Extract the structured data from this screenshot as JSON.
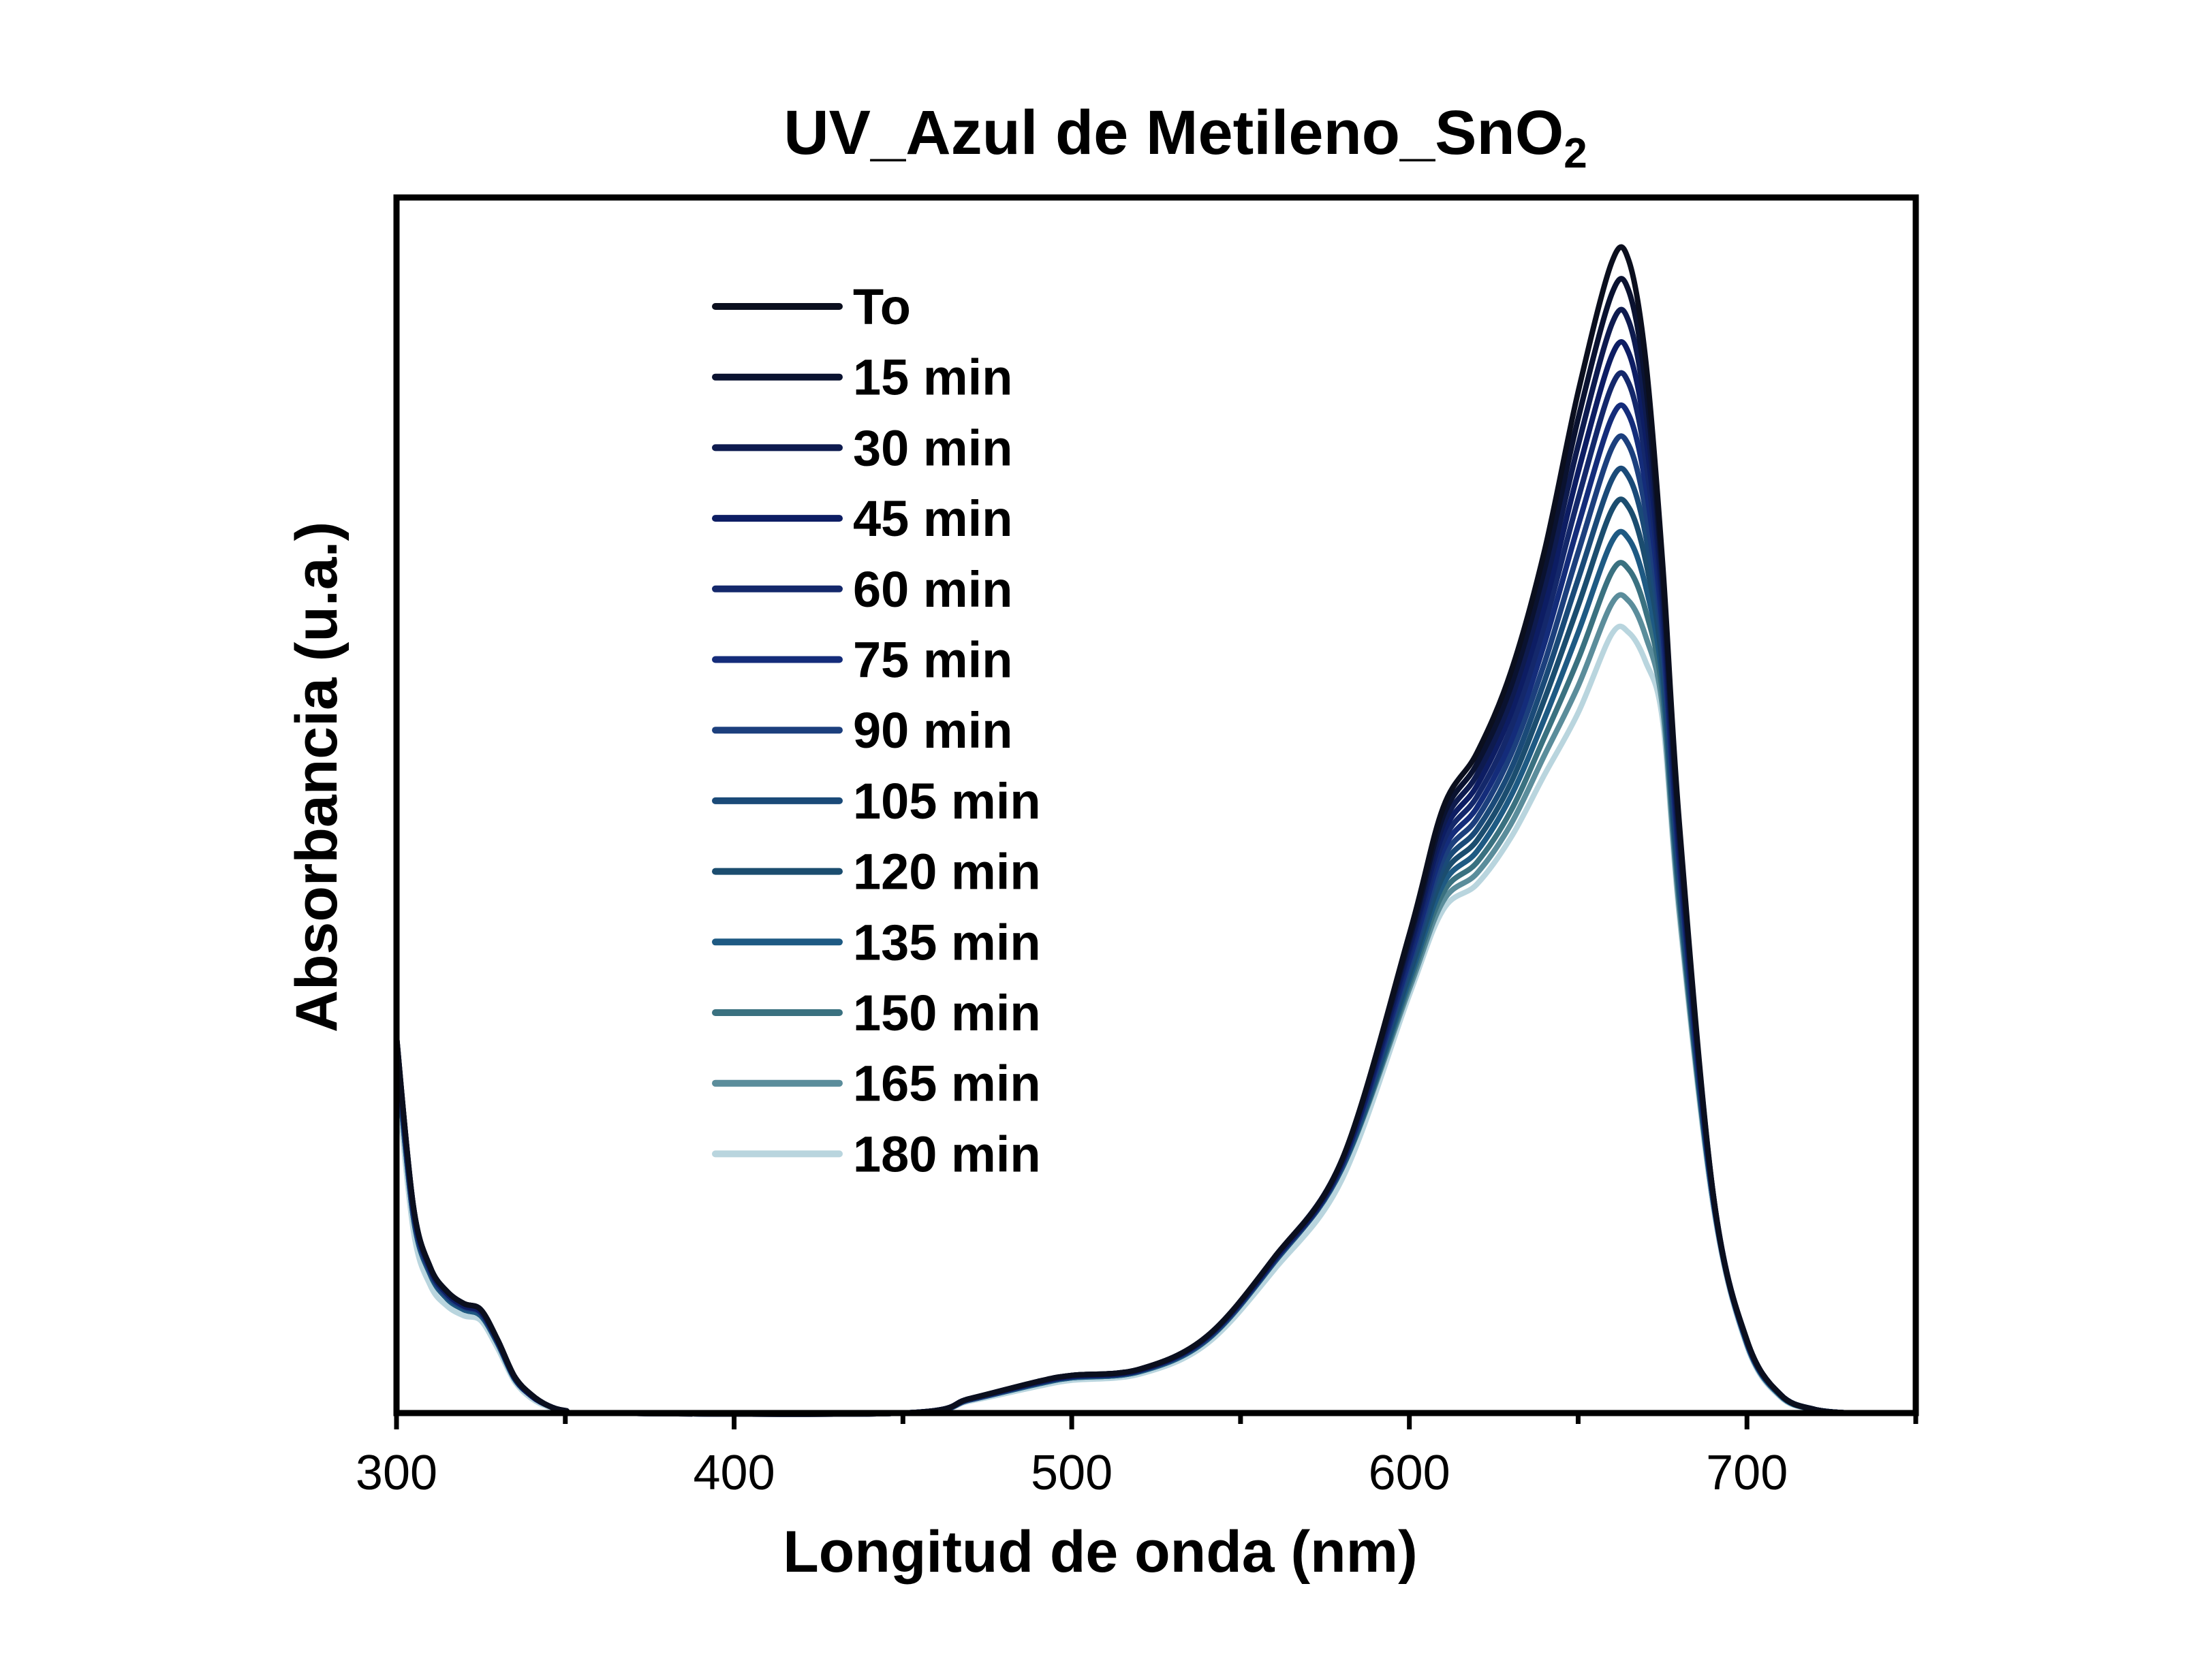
{
  "chart_data": {
    "type": "line",
    "title": "UV_Azul de Metileno_SnO",
    "title_subscript": "2",
    "xlabel": "Longitud de onda (nm)",
    "ylabel": "Absorbancia (u.a.)",
    "xlim": [
      300,
      750
    ],
    "ylim": [
      0,
      1.0
    ],
    "x_ticks": [
      300,
      400,
      500,
      600,
      700
    ],
    "x_ticks_labels": [
      "300",
      "400",
      "500",
      "600",
      "700"
    ],
    "y_tick_labels_shown": false,
    "legend_position": "top-left",
    "grid": false,
    "x": [
      300,
      305,
      310,
      315,
      320,
      325,
      330,
      335,
      340,
      345,
      350,
      360,
      450,
      470,
      490,
      500,
      520,
      540,
      560,
      580,
      600,
      610,
      620,
      630,
      640,
      650,
      660,
      665,
      670,
      675,
      680,
      690,
      700,
      710,
      720,
      730
    ],
    "series": [
      {
        "name": "To",
        "color": "#0b0f1e",
        "values": [
          0.31,
          0.17,
          0.12,
          0.1,
          0.09,
          0.085,
          0.06,
          0.03,
          0.015,
          0.006,
          0.002,
          0.0,
          0.0,
          0.012,
          0.026,
          0.031,
          0.036,
          0.063,
          0.128,
          0.208,
          0.394,
          0.498,
          0.543,
          0.609,
          0.709,
          0.84,
          0.947,
          0.948,
          0.866,
          0.7,
          0.484,
          0.18,
          0.06,
          0.015,
          0.003,
          0.0
        ]
      },
      {
        "name": "15 min",
        "color": "#0a1230",
        "values": [
          0.31,
          0.17,
          0.12,
          0.1,
          0.09,
          0.085,
          0.06,
          0.03,
          0.015,
          0.006,
          0.002,
          0.0,
          0.0,
          0.012,
          0.026,
          0.031,
          0.036,
          0.063,
          0.128,
          0.208,
          0.39,
          0.491,
          0.534,
          0.597,
          0.694,
          0.818,
          0.921,
          0.923,
          0.846,
          0.689,
          0.478,
          0.18,
          0.06,
          0.015,
          0.003,
          0.0
        ]
      },
      {
        "name": "30 min",
        "color": "#0e1b4f",
        "values": [
          0.31,
          0.17,
          0.12,
          0.1,
          0.09,
          0.085,
          0.06,
          0.03,
          0.015,
          0.006,
          0.002,
          0.0,
          0.0,
          0.012,
          0.026,
          0.031,
          0.036,
          0.063,
          0.128,
          0.208,
          0.386,
          0.484,
          0.525,
          0.586,
          0.679,
          0.796,
          0.896,
          0.898,
          0.825,
          0.678,
          0.471,
          0.18,
          0.06,
          0.015,
          0.003,
          0.0
        ]
      },
      {
        "name": "45 min",
        "color": "#0d1d63",
        "values": [
          0.305,
          0.167,
          0.118,
          0.098,
          0.088,
          0.083,
          0.059,
          0.029,
          0.014,
          0.006,
          0.002,
          0.0,
          0.0,
          0.012,
          0.025,
          0.03,
          0.035,
          0.062,
          0.126,
          0.205,
          0.382,
          0.477,
          0.516,
          0.575,
          0.663,
          0.774,
          0.87,
          0.872,
          0.804,
          0.668,
          0.465,
          0.178,
          0.059,
          0.015,
          0.003,
          0.0
        ]
      },
      {
        "name": "60 min",
        "color": "#14286b",
        "values": [
          0.305,
          0.167,
          0.118,
          0.098,
          0.088,
          0.083,
          0.059,
          0.029,
          0.014,
          0.006,
          0.002,
          0.0,
          0.0,
          0.012,
          0.025,
          0.03,
          0.035,
          0.062,
          0.126,
          0.205,
          0.378,
          0.47,
          0.507,
          0.563,
          0.648,
          0.752,
          0.845,
          0.847,
          0.784,
          0.657,
          0.459,
          0.178,
          0.059,
          0.015,
          0.003,
          0.0
        ]
      },
      {
        "name": "75 min",
        "color": "#142c7a",
        "values": [
          0.305,
          0.167,
          0.118,
          0.098,
          0.088,
          0.083,
          0.059,
          0.029,
          0.014,
          0.006,
          0.002,
          0.0,
          0.0,
          0.012,
          0.025,
          0.03,
          0.035,
          0.062,
          0.126,
          0.205,
          0.373,
          0.463,
          0.498,
          0.552,
          0.633,
          0.73,
          0.819,
          0.821,
          0.763,
          0.646,
          0.452,
          0.178,
          0.059,
          0.015,
          0.003,
          0.0
        ]
      },
      {
        "name": "90 min",
        "color": "#1c3f7d",
        "values": [
          0.3,
          0.164,
          0.116,
          0.096,
          0.087,
          0.082,
          0.058,
          0.029,
          0.014,
          0.006,
          0.002,
          0.0,
          0.0,
          0.011,
          0.025,
          0.03,
          0.035,
          0.061,
          0.125,
          0.203,
          0.369,
          0.456,
          0.489,
          0.541,
          0.617,
          0.708,
          0.794,
          0.796,
          0.742,
          0.635,
          0.446,
          0.176,
          0.058,
          0.015,
          0.003,
          0.0
        ]
      },
      {
        "name": "105 min",
        "color": "#1a4a78",
        "values": [
          0.3,
          0.164,
          0.116,
          0.096,
          0.087,
          0.082,
          0.058,
          0.029,
          0.014,
          0.006,
          0.002,
          0.0,
          0.0,
          0.011,
          0.025,
          0.03,
          0.035,
          0.061,
          0.125,
          0.203,
          0.365,
          0.449,
          0.48,
          0.529,
          0.602,
          0.686,
          0.768,
          0.77,
          0.722,
          0.624,
          0.44,
          0.176,
          0.058,
          0.015,
          0.003,
          0.0
        ]
      },
      {
        "name": "120 min",
        "color": "#1b4d6f",
        "values": [
          0.3,
          0.164,
          0.116,
          0.096,
          0.087,
          0.082,
          0.058,
          0.029,
          0.014,
          0.006,
          0.002,
          0.0,
          0.0,
          0.011,
          0.025,
          0.03,
          0.035,
          0.061,
          0.125,
          0.203,
          0.361,
          0.442,
          0.471,
          0.518,
          0.587,
          0.664,
          0.743,
          0.745,
          0.701,
          0.614,
          0.433,
          0.176,
          0.058,
          0.015,
          0.003,
          0.0
        ]
      },
      {
        "name": "135 min",
        "color": "#1e5a83",
        "values": [
          0.295,
          0.161,
          0.114,
          0.094,
          0.085,
          0.08,
          0.057,
          0.028,
          0.014,
          0.006,
          0.002,
          0.0,
          0.0,
          0.011,
          0.024,
          0.029,
          0.034,
          0.06,
          0.124,
          0.201,
          0.357,
          0.435,
          0.462,
          0.507,
          0.571,
          0.642,
          0.717,
          0.719,
          0.68,
          0.603,
          0.427,
          0.174,
          0.057,
          0.014,
          0.003,
          0.0
        ]
      },
      {
        "name": "150 min",
        "color": "#3a7180",
        "values": [
          0.295,
          0.161,
          0.114,
          0.094,
          0.085,
          0.08,
          0.057,
          0.028,
          0.014,
          0.006,
          0.002,
          0.0,
          0.0,
          0.011,
          0.024,
          0.029,
          0.034,
          0.06,
          0.124,
          0.201,
          0.353,
          0.428,
          0.453,
          0.495,
          0.556,
          0.62,
          0.692,
          0.694,
          0.66,
          0.592,
          0.421,
          0.174,
          0.057,
          0.014,
          0.003,
          0.0
        ]
      },
      {
        "name": "165 min",
        "color": "#5b8d9b",
        "values": [
          0.295,
          0.161,
          0.114,
          0.094,
          0.085,
          0.08,
          0.057,
          0.028,
          0.014,
          0.006,
          0.002,
          0.0,
          0.0,
          0.011,
          0.024,
          0.029,
          0.034,
          0.06,
          0.124,
          0.201,
          0.349,
          0.421,
          0.444,
          0.484,
          0.541,
          0.598,
          0.666,
          0.668,
          0.639,
          0.581,
          0.414,
          0.174,
          0.057,
          0.014,
          0.003,
          0.0
        ]
      },
      {
        "name": "180 min",
        "color": "#b9d5de",
        "values": [
          0.28,
          0.15,
          0.105,
          0.088,
          0.08,
          0.076,
          0.053,
          0.026,
          0.012,
          0.005,
          0.001,
          0.0,
          0.0,
          0.01,
          0.022,
          0.027,
          0.032,
          0.057,
          0.118,
          0.192,
          0.344,
          0.414,
          0.435,
          0.473,
          0.525,
          0.576,
          0.641,
          0.642,
          0.618,
          0.57,
          0.408,
          0.17,
          0.055,
          0.013,
          0.003,
          0.0
        ]
      }
    ]
  }
}
